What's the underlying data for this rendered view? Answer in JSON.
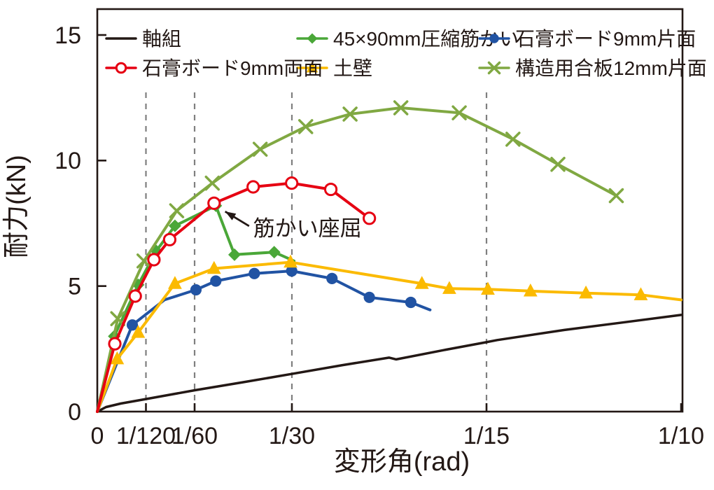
{
  "figure": {
    "caption": ""
  },
  "chart_data": {
    "type": "line",
    "title": "",
    "xlabel": "変形角(rad)",
    "ylabel": "耐力(kN)",
    "xlim": [
      0,
      0.1
    ],
    "ylim": [
      0,
      15
    ],
    "grid": "dashed-vertical-only",
    "legend_position": "top-inside-two-rows",
    "x_ticks": [
      {
        "value": 0,
        "label": "0"
      },
      {
        "value": 0.008333,
        "label": "1/120"
      },
      {
        "value": 0.016667,
        "label": "1/60"
      },
      {
        "value": 0.033333,
        "label": "1/30"
      },
      {
        "value": 0.066667,
        "label": "1/15"
      },
      {
        "value": 0.1,
        "label": "1/10"
      }
    ],
    "y_ticks": [
      {
        "value": 0,
        "label": "0"
      },
      {
        "value": 5,
        "label": "5"
      },
      {
        "value": 10,
        "label": "10"
      },
      {
        "value": 15,
        "label": "15"
      }
    ],
    "dashed_gridlines_x": [
      0.008333,
      0.016667,
      0.033333,
      0.066667
    ],
    "annotation": {
      "text": "筋かい座屈",
      "text_x": 0.0267,
      "text_y": 7.0,
      "arrow_from_x": 0.026,
      "arrow_from_y": 7.39,
      "arrow_to_x": 0.0219,
      "arrow_to_y": 7.97,
      "color": "#231815"
    },
    "series": [
      {
        "name": "軸組",
        "color": "#231815",
        "marker": "none",
        "line_width": 3.5,
        "legend_row": 0,
        "legend_col": 0,
        "markers_at": [],
        "points": [
          [
            0,
            0
          ],
          [
            0.0015,
            0.18
          ],
          [
            0.004,
            0.32
          ],
          [
            0.0083,
            0.5
          ],
          [
            0.0167,
            0.85
          ],
          [
            0.025,
            1.17
          ],
          [
            0.0333,
            1.5
          ],
          [
            0.042,
            1.85
          ],
          [
            0.05,
            2.15
          ],
          [
            0.0512,
            2.08
          ],
          [
            0.06,
            2.48
          ],
          [
            0.0663,
            2.75
          ],
          [
            0.0685,
            2.85
          ],
          [
            0.08,
            3.25
          ],
          [
            0.09,
            3.55
          ],
          [
            0.1,
            3.85
          ]
        ]
      },
      {
        "name": "45×90mm圧縮筋かい",
        "color": "#4aa738",
        "marker": "diamond",
        "line_width": 4,
        "legend_row": 0,
        "legend_col": 1,
        "markers_at": [
          1,
          2,
          3,
          4,
          5,
          6,
          7
        ],
        "points": [
          [
            0,
            0
          ],
          [
            0.0029,
            3.0
          ],
          [
            0.007,
            5.05
          ],
          [
            0.0101,
            6.4
          ],
          [
            0.0133,
            7.4
          ],
          [
            0.0203,
            8.2
          ],
          [
            0.0235,
            6.25
          ],
          [
            0.0303,
            6.35
          ],
          [
            0.0337,
            6.0
          ]
        ]
      },
      {
        "name": "石膏ボード9mm片面",
        "color": "#2153a3",
        "marker": "circle",
        "line_width": 4,
        "legend_row": 0,
        "legend_col": 2,
        "markers_at": [
          1,
          3,
          4,
          5,
          6,
          7,
          8,
          9
        ],
        "points": [
          [
            0,
            0
          ],
          [
            0.006,
            3.45
          ],
          [
            0.0115,
            4.45
          ],
          [
            0.0169,
            4.85
          ],
          [
            0.0203,
            5.2
          ],
          [
            0.0269,
            5.5
          ],
          [
            0.0333,
            5.6
          ],
          [
            0.0402,
            5.3
          ],
          [
            0.0466,
            4.55
          ],
          [
            0.0537,
            4.35
          ],
          [
            0.057,
            4.05
          ]
        ]
      },
      {
        "name": "土壁",
        "color": "#fbba00",
        "marker": "triangle",
        "line_width": 4,
        "legend_row": 1,
        "legend_col": 1,
        "markers_at": [
          1,
          2,
          3,
          4,
          5,
          6,
          7,
          8,
          9,
          10,
          11
        ],
        "points": [
          [
            0,
            0
          ],
          [
            0.0034,
            2.1
          ],
          [
            0.007,
            3.15
          ],
          [
            0.0133,
            5.1
          ],
          [
            0.02,
            5.7
          ],
          [
            0.0331,
            5.95
          ],
          [
            0.0556,
            5.1
          ],
          [
            0.0603,
            4.9
          ],
          [
            0.0669,
            4.87
          ],
          [
            0.0742,
            4.8
          ],
          [
            0.0837,
            4.72
          ],
          [
            0.0931,
            4.65
          ],
          [
            0.1,
            4.45
          ]
        ]
      },
      {
        "name": "構造用合板12mm片面",
        "color": "#80a842",
        "marker": "x",
        "line_width": 4,
        "legend_row": 1,
        "legend_col": 2,
        "markers_at": [
          1,
          2,
          3,
          4,
          5,
          6,
          7,
          8,
          9,
          10,
          11,
          12
        ],
        "points": [
          [
            0,
            0
          ],
          [
            0.0035,
            3.7
          ],
          [
            0.008,
            6.0
          ],
          [
            0.0136,
            8.0
          ],
          [
            0.0197,
            9.1
          ],
          [
            0.0279,
            10.45
          ],
          [
            0.0357,
            11.35
          ],
          [
            0.0433,
            11.85
          ],
          [
            0.052,
            12.1
          ],
          [
            0.062,
            11.9
          ],
          [
            0.0712,
            10.85
          ],
          [
            0.0789,
            9.85
          ],
          [
            0.0889,
            8.6
          ]
        ]
      },
      {
        "name": "石膏ボード9mm両面",
        "color": "#e60012",
        "marker": "circle-open",
        "line_width": 4,
        "legend_row": 1,
        "legend_col": 0,
        "markers_at": [
          1,
          2,
          3,
          4,
          5,
          6,
          7,
          8,
          9
        ],
        "points": [
          [
            0,
            0
          ],
          [
            0.003,
            2.7
          ],
          [
            0.0065,
            4.6
          ],
          [
            0.0097,
            6.05
          ],
          [
            0.0124,
            6.85
          ],
          [
            0.02,
            8.3
          ],
          [
            0.0267,
            8.95
          ],
          [
            0.0333,
            9.1
          ],
          [
            0.04,
            8.85
          ],
          [
            0.0466,
            7.7
          ]
        ]
      }
    ]
  }
}
